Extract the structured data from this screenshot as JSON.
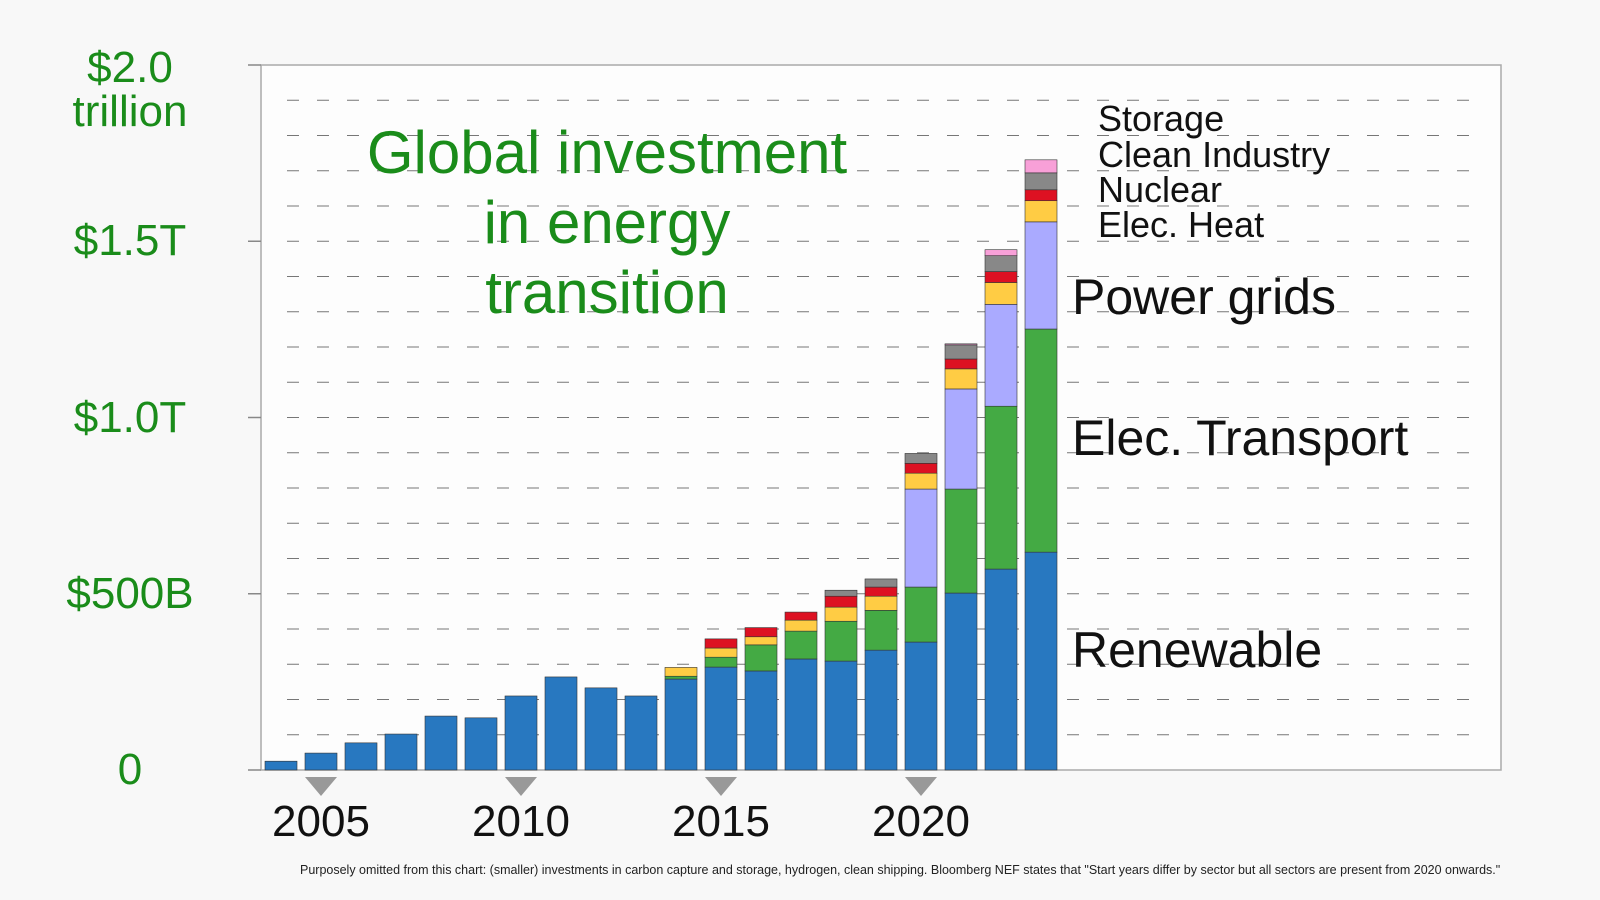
{
  "chart_data": {
    "type": "stacked-bar",
    "title": "Global investment in energy transition",
    "note": "Purposely omitted from this chart: (smaller) investments in carbon capture and storage, hydrogen, clean shipping. Bloomberg NEF states that \"Start years differ by sector but all sectors are present from 2020 onwards.\"",
    "x": [
      2004,
      2005,
      2006,
      2007,
      2008,
      2009,
      2010,
      2011,
      2012,
      2013,
      2014,
      2015,
      2016,
      2017,
      2018,
      2019,
      2020,
      2021,
      2022,
      2023
    ],
    "xlim": [
      2003.5,
      2034.5
    ],
    "xticks": [
      2005,
      2010,
      2015,
      2020
    ],
    "ylim": [
      0,
      2000
    ],
    "yticks": [
      0,
      {
        "value": 500,
        "label": "$500B"
      },
      {
        "value": 1000,
        "label": "$1.0T"
      },
      {
        "value": 1500,
        "label": "$1.5T"
      },
      {
        "value": 2000,
        "label": "$2.0\ntrillion"
      }
    ],
    "minor_yticks": [
      100,
      200,
      300,
      400,
      500,
      600,
      700,
      800,
      900,
      1000,
      1100,
      1200,
      1300,
      1400,
      1500,
      1600,
      1700,
      1800,
      1900
    ],
    "grid": true,
    "series": [
      {
        "name": "Renewable",
        "color": "#2878c0",
        "values": [
          25,
          48,
          77,
          102,
          153,
          148,
          210,
          264,
          233,
          210,
          258,
          292,
          281,
          315,
          309,
          340,
          363,
          502,
          570,
          618
        ]
      },
      {
        "name": "Elec. Transport",
        "color": "#44aa44",
        "values": [
          null,
          null,
          null,
          null,
          null,
          null,
          null,
          null,
          null,
          null,
          8,
          28,
          74,
          79,
          113,
          113,
          156,
          295,
          462,
          633
        ]
      },
      {
        "name": "Power grids",
        "color": "#aaaaff",
        "values": [
          null,
          null,
          null,
          null,
          null,
          null,
          null,
          null,
          null,
          null,
          null,
          null,
          null,
          null,
          null,
          null,
          278,
          284,
          289,
          304
        ]
      },
      {
        "name": "Elec. Heat",
        "color": "#ffcc44",
        "values": [
          null,
          null,
          null,
          null,
          null,
          null,
          null,
          null,
          null,
          null,
          25,
          26,
          23,
          31,
          40,
          40,
          45,
          57,
          62,
          60
        ]
      },
      {
        "name": "Nuclear",
        "color": "#dd1122",
        "values": [
          null,
          null,
          null,
          null,
          null,
          null,
          null,
          null,
          null,
          null,
          null,
          26,
          26,
          23,
          31,
          26,
          28,
          28,
          31,
          31
        ]
      },
      {
        "name": "Clean Industry",
        "color": "#888888",
        "values": [
          null,
          null,
          null,
          null,
          null,
          null,
          null,
          null,
          null,
          null,
          null,
          null,
          null,
          null,
          17,
          23,
          28,
          40,
          45,
          48
        ]
      },
      {
        "name": "Storage",
        "color": "#f8a0d8",
        "values": [
          null,
          null,
          null,
          null,
          null,
          null,
          null,
          null,
          null,
          null,
          null,
          null,
          null,
          null,
          null,
          null,
          null,
          3,
          17,
          37
        ]
      }
    ]
  }
}
